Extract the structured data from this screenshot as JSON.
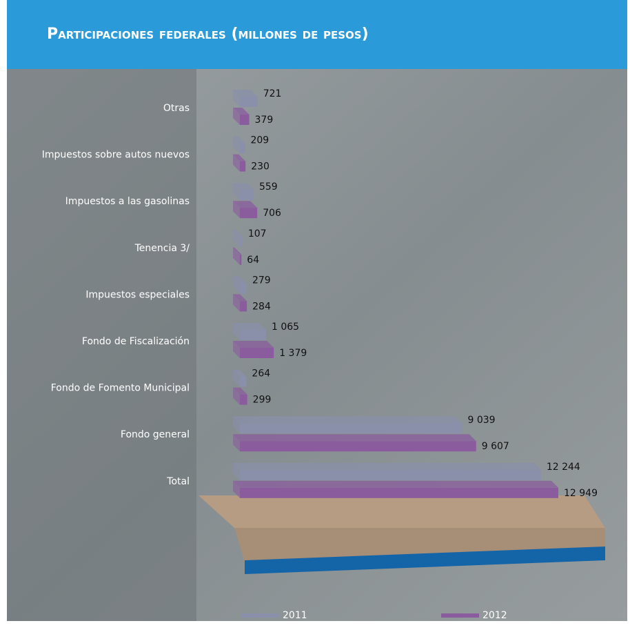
{
  "chart_data": {
    "type": "bar",
    "orientation": "horizontal",
    "title": "Participaciones federales (millones de pesos)",
    "categories": [
      "Otras",
      "Impuestos sobre autos nuevos",
      "Impuestos a las gasolinas",
      "Tenencia 3/",
      "Impuestos especiales",
      "Fondo de Fiscalización",
      "Fondo de Fomento Municipal",
      "Fondo general",
      "Total"
    ],
    "series": [
      {
        "name": "2011",
        "color": "#8a90aa",
        "values": [
          721,
          209,
          559,
          107,
          279,
          1065,
          264,
          9039,
          12244
        ],
        "value_labels": [
          "721",
          "209",
          "559",
          "107",
          "279",
          "1 065",
          "264",
          "9 039",
          "12 244"
        ]
      },
      {
        "name": "2012",
        "color": "#8a5c9e",
        "values": [
          379,
          230,
          706,
          64,
          284,
          1379,
          299,
          9607,
          12949
        ],
        "value_labels": [
          "379",
          "230",
          "706",
          "64",
          "284",
          "1 379",
          "299",
          "9 607",
          "12 949"
        ]
      }
    ],
    "legend": "bottom"
  }
}
